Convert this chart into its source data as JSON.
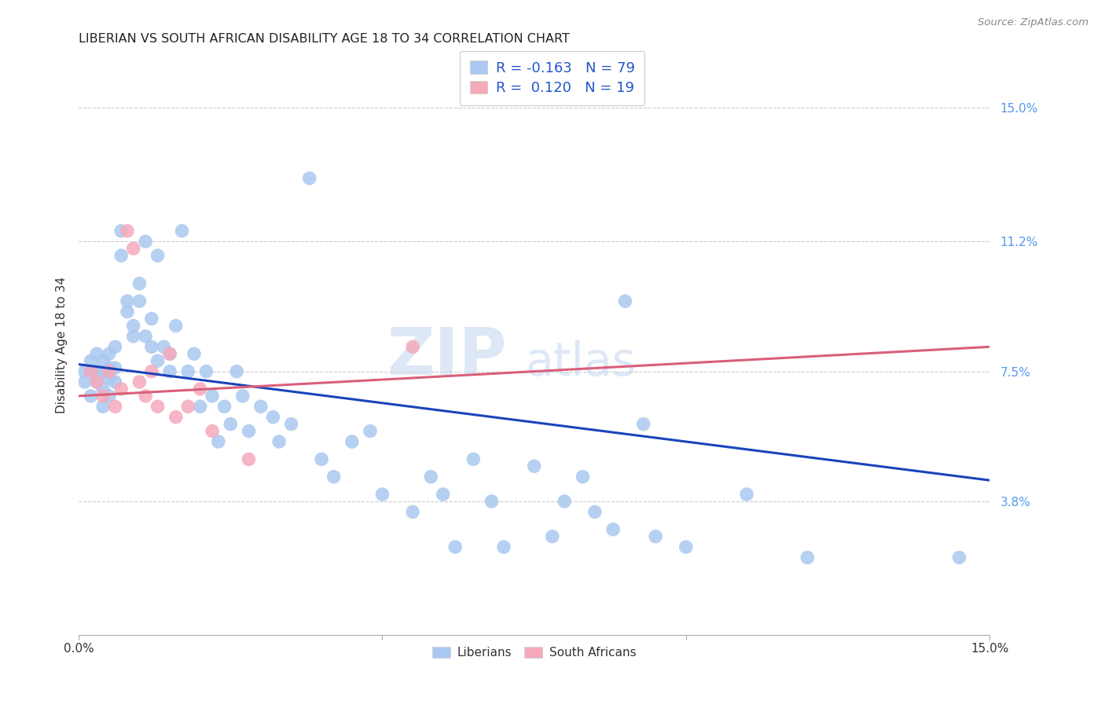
{
  "title": "LIBERIAN VS SOUTH AFRICAN DISABILITY AGE 18 TO 34 CORRELATION CHART",
  "source": "Source: ZipAtlas.com",
  "ylabel": "Disability Age 18 to 34",
  "xlim": [
    0.0,
    0.15
  ],
  "ylim": [
    0.0,
    0.165
  ],
  "ytick_labels": [
    "3.8%",
    "7.5%",
    "11.2%",
    "15.0%"
  ],
  "ytick_positions": [
    0.038,
    0.075,
    0.112,
    0.15
  ],
  "legend_blue_label_r": "R = -0.163",
  "legend_blue_label_n": "N = 79",
  "legend_pink_label_r": "R =  0.120",
  "legend_pink_label_n": "N = 19",
  "blue_color": "#aac8f0",
  "pink_color": "#f5aabb",
  "blue_line_color": "#1a44bb",
  "pink_line_color": "#d95f7a",
  "watermark": "ZIPatlas",
  "watermark_color": "#c8d8f0",
  "blue_line_x0": 0.0,
  "blue_line_x1": 0.15,
  "blue_line_y0": 0.077,
  "blue_line_y1": 0.044,
  "pink_line_x0": 0.0,
  "pink_line_x1": 0.15,
  "pink_line_y0": 0.068,
  "pink_line_y1": 0.082,
  "blue_scatter_x": [
    0.001,
    0.001,
    0.002,
    0.002,
    0.002,
    0.003,
    0.003,
    0.003,
    0.004,
    0.004,
    0.004,
    0.004,
    0.005,
    0.005,
    0.005,
    0.005,
    0.006,
    0.006,
    0.006,
    0.007,
    0.007,
    0.008,
    0.008,
    0.009,
    0.009,
    0.01,
    0.01,
    0.011,
    0.011,
    0.012,
    0.012,
    0.013,
    0.013,
    0.014,
    0.015,
    0.015,
    0.016,
    0.017,
    0.018,
    0.019,
    0.02,
    0.021,
    0.022,
    0.023,
    0.024,
    0.025,
    0.026,
    0.027,
    0.028,
    0.03,
    0.032,
    0.033,
    0.035,
    0.038,
    0.04,
    0.042,
    0.045,
    0.048,
    0.05,
    0.055,
    0.058,
    0.06,
    0.062,
    0.065,
    0.068,
    0.07,
    0.075,
    0.078,
    0.08,
    0.083,
    0.085,
    0.088,
    0.09,
    0.093,
    0.095,
    0.1,
    0.11,
    0.12,
    0.145
  ],
  "blue_scatter_y": [
    0.075,
    0.072,
    0.078,
    0.075,
    0.068,
    0.08,
    0.075,
    0.072,
    0.078,
    0.075,
    0.07,
    0.065,
    0.08,
    0.076,
    0.073,
    0.068,
    0.082,
    0.076,
    0.072,
    0.115,
    0.108,
    0.095,
    0.092,
    0.088,
    0.085,
    0.1,
    0.095,
    0.112,
    0.085,
    0.09,
    0.082,
    0.108,
    0.078,
    0.082,
    0.08,
    0.075,
    0.088,
    0.115,
    0.075,
    0.08,
    0.065,
    0.075,
    0.068,
    0.055,
    0.065,
    0.06,
    0.075,
    0.068,
    0.058,
    0.065,
    0.062,
    0.055,
    0.06,
    0.13,
    0.05,
    0.045,
    0.055,
    0.058,
    0.04,
    0.035,
    0.045,
    0.04,
    0.025,
    0.05,
    0.038,
    0.025,
    0.048,
    0.028,
    0.038,
    0.045,
    0.035,
    0.03,
    0.095,
    0.06,
    0.028,
    0.025,
    0.04,
    0.022,
    0.022
  ],
  "pink_scatter_x": [
    0.002,
    0.003,
    0.004,
    0.005,
    0.006,
    0.007,
    0.008,
    0.009,
    0.01,
    0.011,
    0.012,
    0.013,
    0.015,
    0.016,
    0.018,
    0.02,
    0.022,
    0.028,
    0.055
  ],
  "pink_scatter_y": [
    0.075,
    0.072,
    0.068,
    0.075,
    0.065,
    0.07,
    0.115,
    0.11,
    0.072,
    0.068,
    0.075,
    0.065,
    0.08,
    0.062,
    0.065,
    0.07,
    0.058,
    0.05,
    0.082
  ]
}
